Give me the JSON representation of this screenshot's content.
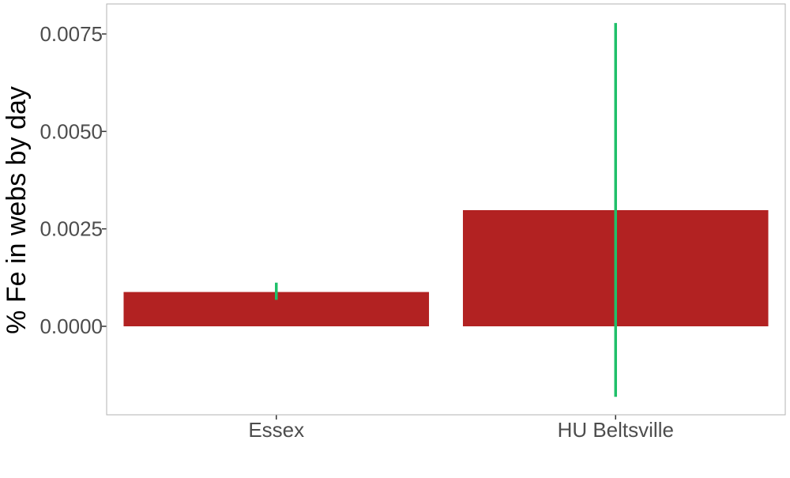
{
  "chart_data": {
    "type": "bar",
    "title": "",
    "xlabel": "",
    "ylabel": "% Fe in webs by day",
    "categories": [
      "Essex",
      "HU Beltsville"
    ],
    "values": [
      0.00088,
      0.00298
    ],
    "error_bars": [
      {
        "low": 0.00068,
        "high": 0.00112
      },
      {
        "low": -0.00181,
        "high": 0.00778
      }
    ],
    "ylim": [
      -0.00227,
      0.00827
    ],
    "yticks": [
      0,
      0.0025,
      0.005,
      0.0075
    ],
    "ytick_labels": [
      "0.0000",
      "0.0025",
      "0.0050",
      "0.0075"
    ],
    "grid": false,
    "legend": "none",
    "colors": {
      "bar": "#b22222",
      "error_bar": "#1fc06a",
      "panel_border": "#b3b3b3",
      "tick_text": "#4d4d4d",
      "axis_title": "#000000"
    }
  }
}
